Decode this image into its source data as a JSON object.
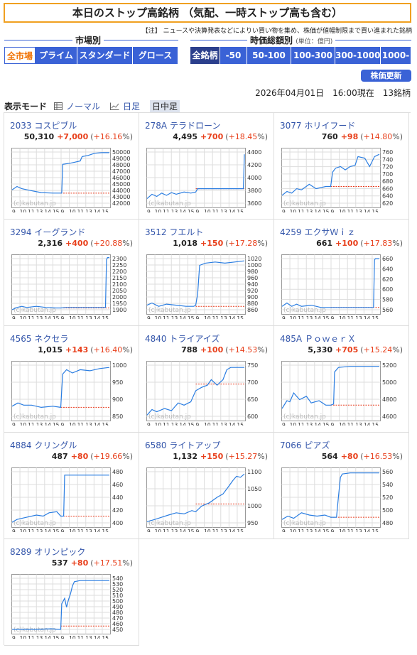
{
  "page_title": "本日のストップ高銘柄 （気配、一時ストップ高も含む）",
  "note": "【注】 ニュースや決算発表などによりい買い物を集め、株価が値幅制限まで買い進まれた銘柄",
  "market_group": {
    "label": "市場別",
    "items": [
      "全市場",
      "プライム",
      "スタンダード",
      "グロース"
    ],
    "selected": "全市場"
  },
  "cap_group": {
    "label": "時価総額別",
    "unit": "(単位：億円)",
    "items": [
      "全銘柄",
      "-50",
      "50-100",
      "100-300",
      "300-1000",
      "1000-"
    ],
    "selected": "全銘柄"
  },
  "refresh_label": "株価更新",
  "date_line": "2026年04月01日　16:00現在　13銘柄",
  "display_mode": {
    "label": "表示モード",
    "items": [
      {
        "label": "ノーマル",
        "icon": "table-icon"
      },
      {
        "label": "日足",
        "icon": "line-chart-icon"
      },
      {
        "label": "日中足",
        "icon": "none"
      }
    ],
    "selected": "日中足"
  },
  "chart_watermark": "(c)kabutan.jp",
  "chart_xticks": [
    "9",
    "10",
    "11",
    "13",
    "14",
    "15",
    "9",
    "10",
    "11",
    "13",
    "14",
    "15"
  ],
  "colors": {
    "accent": "#3a62d6",
    "up": "#e8401c",
    "line": "#2a7de1",
    "dashed": "#e83a1c",
    "title_border": "#f0a020"
  },
  "stocks": [
    {
      "code": "2033",
      "name": "コスピブル",
      "price": "50,310",
      "change": "+7,000",
      "pct": "+16.16",
      "yticks": [
        "50000",
        "49000",
        "48000",
        "47000",
        "46000",
        "45000",
        "44000",
        "43000",
        "42000"
      ],
      "prev_close": 43310
    },
    {
      "code": "278A",
      "name": "テラドローン",
      "price": "4,495",
      "change": "+700",
      "pct": "+18.45",
      "yticks": [
        "4400",
        "4200",
        "4000",
        "3800",
        "3600"
      ],
      "prev_close": 3795
    },
    {
      "code": "3077",
      "name": "ホリイフード",
      "price": "760",
      "change": "+98",
      "pct": "+14.80",
      "yticks": [
        "760",
        "740",
        "720",
        "700",
        "680",
        "660",
        "640",
        "620"
      ],
      "prev_close": 662
    },
    {
      "code": "3294",
      "name": "イーグランド",
      "price": "2,316",
      "change": "+400",
      "pct": "+20.88",
      "yticks": [
        "2300",
        "2250",
        "2200",
        "2150",
        "2100",
        "2050",
        "2000",
        "1950",
        "1900"
      ],
      "prev_close": 1916
    },
    {
      "code": "3512",
      "name": "フエルト",
      "price": "1,018",
      "change": "+150",
      "pct": "+17.28",
      "yticks": [
        "1020",
        "1000",
        "980",
        "960",
        "940",
        "920",
        "900",
        "880",
        "860"
      ],
      "prev_close": 868
    },
    {
      "code": "4259",
      "name": "エクサＷｉｚ",
      "price": "661",
      "change": "+100",
      "pct": "+17.83",
      "yticks": [
        "660",
        "640",
        "620",
        "600",
        "580",
        "560"
      ],
      "prev_close": 561
    },
    {
      "code": "4565",
      "name": "ネクセラ",
      "price": "1,015",
      "change": "+143",
      "pct": "+16.40",
      "yticks": [
        "1000",
        "950",
        "900",
        "850"
      ],
      "prev_close": 872
    },
    {
      "code": "4840",
      "name": "トライアイズ",
      "price": "788",
      "change": "+100",
      "pct": "+14.53",
      "yticks": [
        "750",
        "700",
        "650",
        "600"
      ],
      "prev_close": 688
    },
    {
      "code": "485A",
      "name": "ＰｏｗｅｒＸ",
      "price": "5,330",
      "change": "+705",
      "pct": "+15.24",
      "yticks": [
        "5200",
        "5000",
        "4800",
        "4600"
      ],
      "prev_close": 4625
    },
    {
      "code": "4884",
      "name": "クリングル",
      "price": "487",
      "change": "+80",
      "pct": "+19.66",
      "yticks": [
        "480",
        "460",
        "440",
        "420",
        "400"
      ],
      "prev_close": 407
    },
    {
      "code": "6580",
      "name": "ライトアップ",
      "price": "1,132",
      "change": "+150",
      "pct": "+15.27",
      "yticks": [
        "1100",
        "1050",
        "1000",
        "950"
      ],
      "prev_close": 982
    },
    {
      "code": "7066",
      "name": "ピアズ",
      "price": "564",
      "change": "+80",
      "pct": "+16.53",
      "yticks": [
        "560",
        "540",
        "520",
        "500",
        "480"
      ],
      "prev_close": 484
    },
    {
      "code": "8289",
      "name": "オリンピック",
      "price": "537",
      "change": "+80",
      "pct": "+17.51",
      "yticks": [
        "540",
        "530",
        "520",
        "510",
        "500",
        "490",
        "480",
        "470",
        "460",
        "450"
      ],
      "prev_close": 457
    }
  ]
}
